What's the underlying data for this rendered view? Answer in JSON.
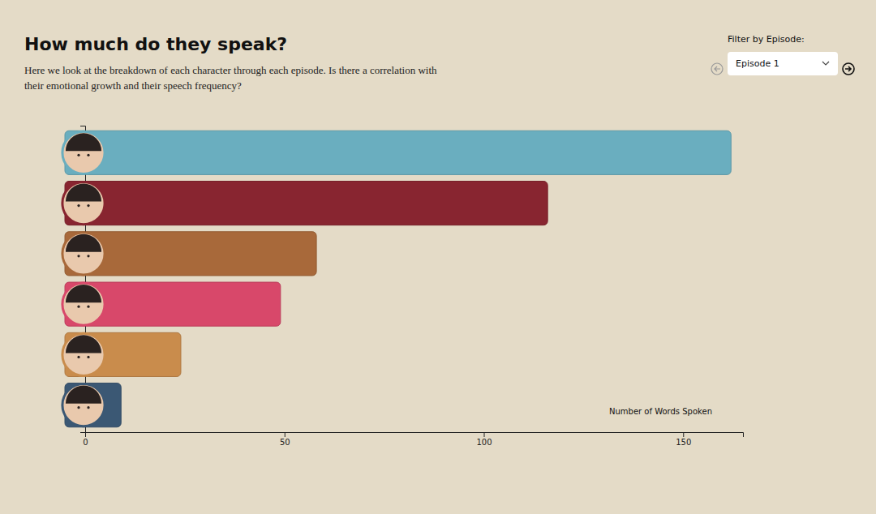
{
  "chart_data": {
    "type": "bar",
    "orientation": "horizontal",
    "title": "How much do they speak?",
    "subtitle": "Here we look at the breakdown of each character through each episode. Is there a correlation with their emotional growth and their speech frequency?",
    "categories": [
      null,
      null,
      null,
      null,
      null,
      null
    ],
    "values": [
      162,
      116,
      58,
      49,
      24,
      9
    ],
    "colors": [
      "#6aaebf",
      "#882530",
      "#a8693a",
      "#d8486a",
      "#c98c4c",
      "#3b5874"
    ],
    "x_label": "Number of Words Spoken",
    "xlim": [
      0,
      165
    ],
    "xticks": [
      0,
      50,
      100,
      150
    ]
  },
  "controls": {
    "filter_label": "Filter by Episode:",
    "selected": "Episode 1"
  }
}
